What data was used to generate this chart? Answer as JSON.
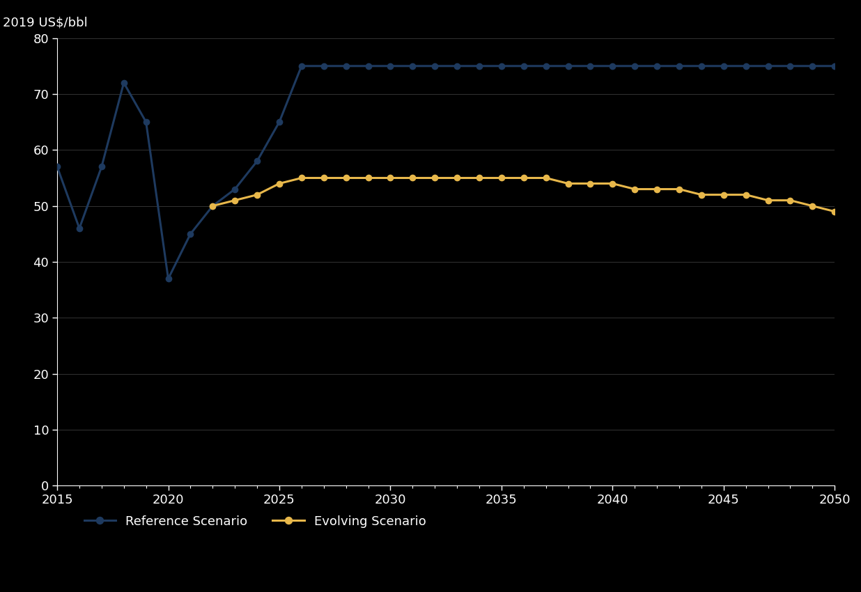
{
  "ylabel": "2019 US$/bbl",
  "bg_color": "#000000",
  "plot_bg_color": "#000000",
  "evolving_color": "#e8b84b",
  "reference_color": "#1e3a5f",
  "reference_years": [
    2015,
    2016,
    2017,
    2018,
    2019,
    2020,
    2021,
    2022,
    2023,
    2024,
    2025,
    2026,
    2027,
    2028,
    2029,
    2030,
    2031,
    2032,
    2033,
    2034,
    2035,
    2036,
    2037,
    2038,
    2039,
    2040,
    2041,
    2042,
    2043,
    2044,
    2045,
    2046,
    2047,
    2048,
    2049,
    2050
  ],
  "reference_values": [
    57,
    46,
    57,
    72,
    65,
    37,
    45,
    50,
    53,
    58,
    65,
    75,
    75,
    75,
    75,
    75,
    75,
    75,
    75,
    75,
    75,
    75,
    75,
    75,
    75,
    75,
    75,
    75,
    75,
    75,
    75,
    75,
    75,
    75,
    75,
    75
  ],
  "evolving_years": [
    2022,
    2023,
    2024,
    2025,
    2026,
    2027,
    2028,
    2029,
    2030,
    2031,
    2032,
    2033,
    2034,
    2035,
    2036,
    2037,
    2038,
    2039,
    2040,
    2041,
    2042,
    2043,
    2044,
    2045,
    2046,
    2047,
    2048,
    2049,
    2050
  ],
  "evolving_values": [
    50,
    51,
    52,
    54,
    55,
    55,
    55,
    55,
    55,
    55,
    55,
    55,
    55,
    55,
    55,
    55,
    54,
    54,
    54,
    53,
    53,
    53,
    52,
    52,
    52,
    51,
    51,
    50,
    49
  ],
  "ylim": [
    0,
    80
  ],
  "xlim": [
    2015,
    2050
  ],
  "yticks": [
    0,
    10,
    20,
    30,
    40,
    50,
    60,
    70,
    80
  ],
  "xticks": [
    2015,
    2020,
    2025,
    2030,
    2035,
    2040,
    2045,
    2050
  ],
  "legend_labels": [
    "Evolving Scenario",
    "Reference Scenario"
  ],
  "marker": "o",
  "markersize": 6,
  "linewidth": 2.2,
  "tick_color": "white",
  "label_color": "white",
  "grid_color": "#333333",
  "spine_color": "white",
  "ylabel_fontsize": 13,
  "tick_fontsize": 13,
  "legend_fontsize": 13
}
